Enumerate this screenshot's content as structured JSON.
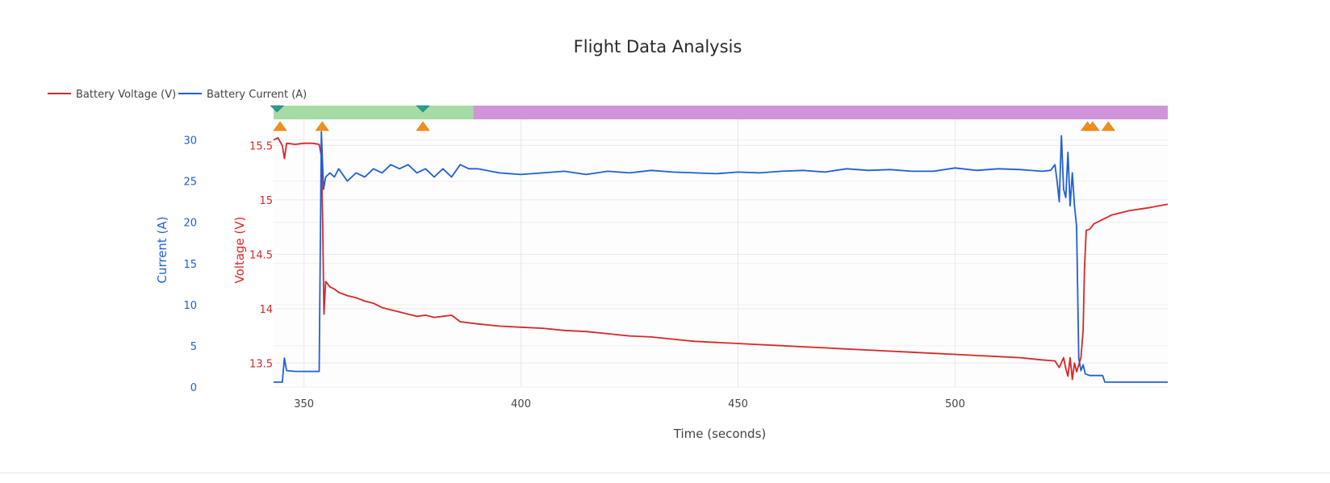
{
  "chart_data": {
    "type": "line",
    "title": "Flight Data Analysis",
    "xlabel": "Time (seconds)",
    "xlim": [
      343,
      549
    ],
    "x_ticks": [
      "350",
      "400",
      "450",
      "500"
    ],
    "legend_position": "top-left",
    "grid": true,
    "y_left_inner": {
      "label": "Voltage (V)",
      "ticks": [
        "13.5",
        "14",
        "14.5",
        "15",
        "15.5"
      ],
      "range": [
        13.28,
        15.74
      ],
      "color": "#d62728"
    },
    "y_left_outer": {
      "label": "Current (A)",
      "ticks": [
        "0",
        "5",
        "10",
        "15",
        "20",
        "25",
        "30"
      ],
      "range": [
        0,
        32.5
      ],
      "color": "#1f5fd6"
    },
    "series": [
      {
        "name": "Battery Voltage (V)",
        "axis": "voltage",
        "color": "#d62728",
        "x": [
          343,
          344,
          345,
          345.5,
          346,
          348,
          350,
          352,
          353.5,
          354,
          354.3,
          354.6,
          355,
          356,
          357,
          358,
          360,
          362,
          364,
          366,
          368,
          370,
          372,
          374,
          376,
          378,
          380,
          382,
          384,
          386,
          390,
          395,
          400,
          405,
          410,
          415,
          420,
          425,
          430,
          435,
          440,
          445,
          450,
          455,
          460,
          465,
          470,
          475,
          480,
          485,
          490,
          495,
          500,
          505,
          510,
          515,
          520,
          523,
          524,
          525,
          525.5,
          526,
          526.5,
          527,
          527.5,
          528,
          529,
          529.5,
          529.8,
          530.2,
          531,
          532,
          534,
          536,
          540,
          545,
          549
        ],
        "y": [
          15.55,
          15.57,
          15.5,
          15.38,
          15.52,
          15.51,
          15.52,
          15.52,
          15.51,
          15.4,
          14.8,
          13.95,
          14.25,
          14.2,
          14.18,
          14.15,
          14.12,
          14.1,
          14.07,
          14.05,
          14.01,
          13.99,
          13.97,
          13.95,
          13.93,
          13.94,
          13.92,
          13.93,
          13.94,
          13.88,
          13.86,
          13.84,
          13.83,
          13.82,
          13.8,
          13.79,
          13.77,
          13.75,
          13.74,
          13.72,
          13.7,
          13.69,
          13.68,
          13.67,
          13.66,
          13.65,
          13.64,
          13.63,
          13.62,
          13.61,
          13.6,
          13.59,
          13.58,
          13.57,
          13.56,
          13.55,
          13.53,
          13.52,
          13.46,
          13.55,
          13.45,
          13.38,
          13.55,
          13.35,
          13.5,
          13.42,
          13.55,
          13.8,
          14.35,
          14.72,
          14.73,
          14.78,
          14.82,
          14.86,
          14.9,
          14.93,
          14.96
        ]
      },
      {
        "name": "Battery Current (A)",
        "axis": "current",
        "color": "#1f5fd6",
        "x": [
          343,
          345,
          345.5,
          346,
          348,
          350,
          352,
          353.5,
          354,
          354.5,
          355,
          356,
          357,
          358,
          360,
          362,
          364,
          366,
          368,
          370,
          372,
          374,
          376,
          378,
          380,
          382,
          384,
          386,
          388,
          390,
          395,
          400,
          405,
          410,
          415,
          420,
          425,
          430,
          435,
          440,
          445,
          450,
          455,
          460,
          465,
          470,
          475,
          480,
          485,
          490,
          495,
          500,
          505,
          510,
          515,
          520,
          522,
          523,
          523.5,
          524,
          524.5,
          525,
          525.5,
          526,
          526.5,
          527,
          527.5,
          528,
          528.5,
          529,
          529.5,
          530,
          531,
          532,
          534,
          534.5,
          535,
          540,
          549
        ],
        "y": [
          0.6,
          0.6,
          3.5,
          2.0,
          1.9,
          1.9,
          1.9,
          1.9,
          31.0,
          24.0,
          25.5,
          26.0,
          25.5,
          26.5,
          25.0,
          26.0,
          25.5,
          26.5,
          26.0,
          27.0,
          26.5,
          27.0,
          26.0,
          26.5,
          25.5,
          26.5,
          25.5,
          27.0,
          26.5,
          26.5,
          26.0,
          25.8,
          26.0,
          26.2,
          25.8,
          26.2,
          26.0,
          26.3,
          26.1,
          26.0,
          25.9,
          26.1,
          26.0,
          26.2,
          26.3,
          26.1,
          26.5,
          26.3,
          26.4,
          26.2,
          26.2,
          26.6,
          26.3,
          26.5,
          26.4,
          26.2,
          26.3,
          27.0,
          25.0,
          22.5,
          30.5,
          24.0,
          23.0,
          28.5,
          22.0,
          26.0,
          22.0,
          19.5,
          3.5,
          2.0,
          2.7,
          1.6,
          1.4,
          1.4,
          1.4,
          0.6,
          0.6,
          0.6,
          0.6
        ]
      }
    ],
    "phase_bands": [
      {
        "x0": 343,
        "x1": 389,
        "color": "#a6dba6"
      },
      {
        "x0": 389,
        "x1": 549,
        "color": "#cf95d8"
      }
    ],
    "event_markers": [
      {
        "x": 343.8,
        "shape": "triangle-down",
        "color": "#2a9d8f"
      },
      {
        "x": 377.4,
        "shape": "triangle-down",
        "color": "#2a9d8f"
      },
      {
        "x": 344.5,
        "shape": "triangle-up",
        "color": "#f28e1c"
      },
      {
        "x": 354.2,
        "shape": "triangle-up",
        "color": "#f28e1c"
      },
      {
        "x": 377.4,
        "shape": "triangle-up",
        "color": "#f28e1c"
      },
      {
        "x": 530.5,
        "shape": "triangle-up",
        "color": "#f28e1c"
      },
      {
        "x": 531.7,
        "shape": "triangle-up",
        "color": "#f28e1c"
      },
      {
        "x": 535.3,
        "shape": "triangle-up",
        "color": "#f28e1c"
      }
    ]
  }
}
